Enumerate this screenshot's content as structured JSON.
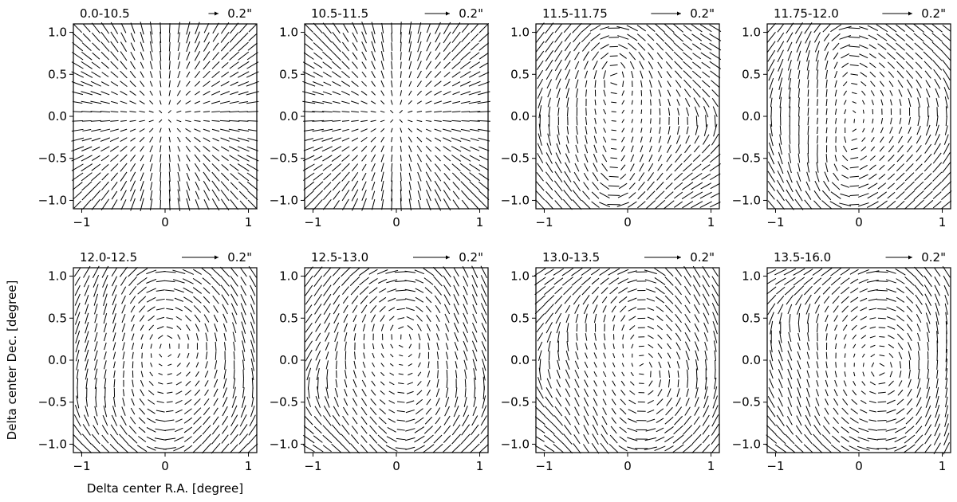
{
  "figure": {
    "xlabel": "Delta center R.A. [degree]",
    "ylabel": "Delta center Dec. [degree]"
  },
  "chart_data": {
    "type": "quiver",
    "xlim": [
      -1.1,
      1.1
    ],
    "ylim": [
      -1.1,
      1.1
    ],
    "x_ticks": [
      "−1",
      "0",
      "1"
    ],
    "y_ticks": [
      "1.0",
      "0.5",
      "0.0",
      "−0.5",
      "−1.0"
    ],
    "x_tick_values": [
      -1,
      0,
      1
    ],
    "y_tick_values": [
      1.0,
      0.5,
      0.0,
      -0.5,
      -1.0
    ],
    "grid": false,
    "key_label": "0.2\"",
    "key_value_arcsec": 0.2,
    "panels": [
      {
        "title": "0.0-10.5",
        "pattern": "radial",
        "key_length_deg": 0.12
      },
      {
        "title": "10.5-11.5",
        "pattern": "radial",
        "key_length_deg": 0.3
      },
      {
        "title": "11.5-11.75",
        "pattern": "tangential",
        "key_length_deg": 0.36
      },
      {
        "title": "11.75-12.0",
        "pattern": "tangential",
        "key_length_deg": 0.36
      },
      {
        "title": "12.0-12.5",
        "pattern": "tangential",
        "key_length_deg": 0.44
      },
      {
        "title": "12.5-13.0",
        "pattern": "tangential",
        "key_length_deg": 0.44
      },
      {
        "title": "13.0-13.5",
        "pattern": "tangential",
        "key_length_deg": 0.44
      },
      {
        "title": "13.5-16.0",
        "pattern": "tangential",
        "key_length_deg": 0.32
      }
    ]
  }
}
